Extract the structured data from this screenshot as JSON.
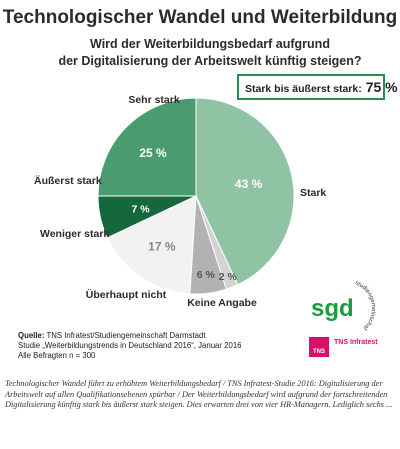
{
  "header": {
    "title": "Technologischer Wandel und Weiterbildung",
    "question_line1": "Wird der Weiterbildungsbedarf aufgrund",
    "question_line2": "der Digitalisierung der Arbeitswelt künftig steigen?"
  },
  "callout": {
    "label": "Stark bis äußerst stark:",
    "value": "75 %"
  },
  "chart_data": {
    "type": "pie",
    "slices": [
      {
        "name": "Stark",
        "value": 43,
        "value_label": "43 %",
        "color": "#8fc3a3"
      },
      {
        "name": "Keine Angabe",
        "value": 2,
        "value_label": "2 %",
        "color": "#d3d3d3"
      },
      {
        "name": "Überhaupt nicht",
        "value": 6,
        "value_label": "6 %",
        "color": "#b2b2b2"
      },
      {
        "name": "Weniger stark",
        "value": 17,
        "value_label": "17 %",
        "color": "#f2f2f2"
      },
      {
        "name": "Äußerst stark",
        "value": 7,
        "value_label": "7 %",
        "color": "#15683c"
      },
      {
        "name": "Sehr stark",
        "value": 25,
        "value_label": "25 %",
        "color": "#4a9c6e"
      }
    ]
  },
  "source": {
    "label": "Quelle:",
    "line1": "TNS Infratest/Studiengemeinschaft Darmstadt",
    "line2": "Studie „Weiterbildungstrends in Deutschland 2016“, Januar 2016",
    "line3": "Alle Befragten n = 300"
  },
  "logos": {
    "sgd_text": "sgd",
    "sgd_arc_text": "studiengemeinschaft darmstadt",
    "tns_box_text": "TNS",
    "tns_label": "TNS Infratest"
  },
  "caption": "Technologischer Wandel führt zu erhöhtem Weiterbildungsbedarf / TNS Infratest-Studie 2016: Digitalisierung der Arbeitswelt auf allen Qualifikationsebenen spürbar / Der Weiterbildungsbedarf wird aufgrund der fortschreitenden Digitalisierung künftig stark bis äußerst stark steigen. Dies erwarten drei von vier HR-Managern. Lediglich sechs ..."
}
